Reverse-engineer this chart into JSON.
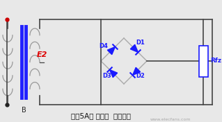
{
  "bg_color": "#e8e8e8",
  "title": "图（5A） 桥式整  流电路图",
  "E2_label": "E2",
  "B_label": "B",
  "Rfz_label": "Rfz",
  "D_labels": [
    "D4",
    "D1",
    "D3",
    "D2"
  ],
  "line_color": "#444444",
  "diode_color": "#1a1aff",
  "transformer_bar_color": "#2222ff",
  "E2_color": "#dd0000",
  "Rfz_color": "#1a1aff",
  "watermark_color": "#999999",
  "watermark": "www.elecfans.com",
  "figw": 3.19,
  "figh": 1.76,
  "dpi": 100,
  "xlim": [
    0,
    319
  ],
  "ylim": [
    0,
    176
  ]
}
